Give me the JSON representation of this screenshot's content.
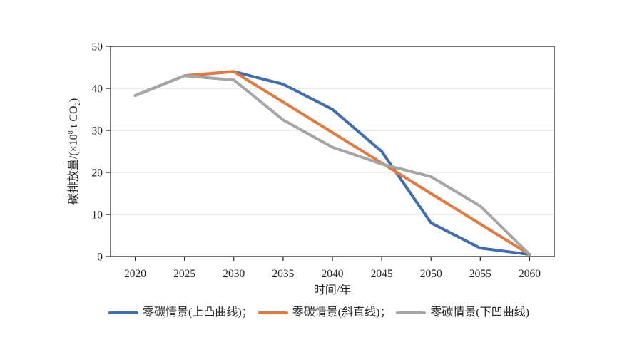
{
  "chart_data": {
    "type": "line",
    "title": "",
    "xlabel": "时间/年",
    "ylabel": "碳排放量/(×10⁸ t CO₂)",
    "x": [
      2020,
      2025,
      2030,
      2035,
      2040,
      2045,
      2050,
      2055,
      2060
    ],
    "series": [
      {
        "name": "零碳情景(上凸曲线)",
        "color": "#3e6db3",
        "values": [
          38.3,
          43,
          44,
          41,
          35,
          25,
          8,
          2,
          0.5
        ]
      },
      {
        "name": "零碳情景(斜直线)",
        "color": "#e5793b",
        "values": [
          38.3,
          43,
          44,
          36.75,
          29.5,
          22.25,
          15,
          7.75,
          0.5
        ]
      },
      {
        "name": "零碳情景(下凹曲线)",
        "color": "#a5a5a5",
        "values": [
          38.3,
          43,
          42,
          32.5,
          26,
          22,
          19,
          12,
          0.5
        ]
      }
    ],
    "xlim": [
      2017.5,
      2062.5
    ],
    "ylim": [
      0,
      50
    ],
    "x_ticks": [
      2020,
      2025,
      2030,
      2035,
      2040,
      2045,
      2050,
      2055,
      2060
    ],
    "y_ticks": [
      0,
      10,
      20,
      30,
      40,
      50
    ],
    "grid": "horizontal",
    "legend_position": "bottom"
  },
  "axes": {
    "xlabel": "时间/年",
    "ylabel_parts": {
      "pre": "碳排放量/(×10",
      "sup": "8",
      "mid": " t CO",
      "sub": "2",
      "post": ")"
    }
  },
  "legend": {
    "items": [
      {
        "label": "零碳情景(上凸曲线)；"
      },
      {
        "label": "零碳情景(斜直线)；"
      },
      {
        "label": "零碳情景(下凹曲线)"
      }
    ]
  }
}
